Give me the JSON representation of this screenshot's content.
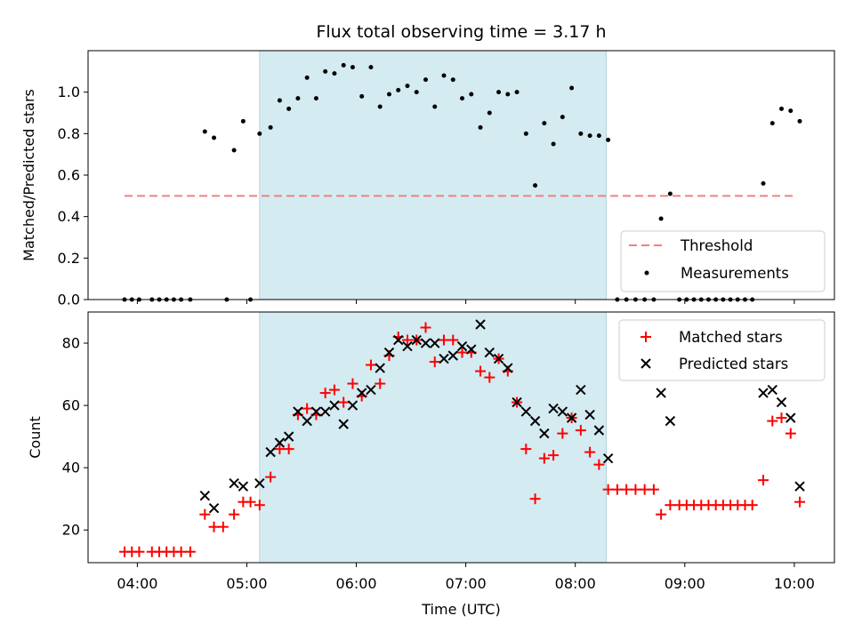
{
  "chart_data": [
    {
      "type": "scatter",
      "title": "Flux total observing time = 3.17 h",
      "xlabel": "",
      "ylabel": "Matched/Predicted stars",
      "xlim": [
        "03:33",
        "10:22"
      ],
      "ylim": [
        0,
        1.2
      ],
      "yticks": [
        0.0,
        0.2,
        0.4,
        0.6,
        0.8,
        1.0
      ],
      "ytick_labels": [
        "0.0",
        "0.2",
        "0.4",
        "0.6",
        "0.8",
        "1.0"
      ],
      "xticks": [
        "04:00",
        "05:00",
        "06:00",
        "07:00",
        "08:00",
        "09:00",
        "10:00"
      ],
      "observing_window": [
        "05:07",
        "08:17"
      ],
      "observing_window_color": "#d4ebf1",
      "legend": {
        "placement": "lower right",
        "entries": [
          "Threshold",
          "Measurements"
        ]
      },
      "threshold": {
        "name": "Threshold",
        "value": 0.5,
        "x_range": [
          "03:53",
          "10:00"
        ],
        "color": "#f08080"
      },
      "series": [
        {
          "name": "Measurements",
          "color": "#000000",
          "points": [
            [
              "03:53",
              0
            ],
            [
              "03:57",
              0
            ],
            [
              "04:01",
              0
            ],
            [
              "04:08",
              0
            ],
            [
              "04:12",
              0
            ],
            [
              "04:16",
              0
            ],
            [
              "04:20",
              0
            ],
            [
              "04:24",
              0
            ],
            [
              "04:29",
              0
            ],
            [
              "04:37",
              0.81
            ],
            [
              "04:42",
              0.78
            ],
            [
              "04:49",
              0
            ],
            [
              "04:53",
              0.72
            ],
            [
              "04:58",
              0.86
            ],
            [
              "05:02",
              0
            ],
            [
              "05:07",
              0.8
            ],
            [
              "05:13",
              0.83
            ],
            [
              "05:18",
              0.96
            ],
            [
              "05:23",
              0.92
            ],
            [
              "05:28",
              0.97
            ],
            [
              "05:33",
              1.07
            ],
            [
              "05:38",
              0.97
            ],
            [
              "05:43",
              1.1
            ],
            [
              "05:48",
              1.09
            ],
            [
              "05:53",
              1.13
            ],
            [
              "05:58",
              1.12
            ],
            [
              "06:03",
              0.98
            ],
            [
              "06:08",
              1.12
            ],
            [
              "06:13",
              0.93
            ],
            [
              "06:18",
              0.99
            ],
            [
              "06:23",
              1.01
            ],
            [
              "06:28",
              1.03
            ],
            [
              "06:33",
              1.0
            ],
            [
              "06:38",
              1.06
            ],
            [
              "06:43",
              0.93
            ],
            [
              "06:48",
              1.08
            ],
            [
              "06:53",
              1.06
            ],
            [
              "06:58",
              0.97
            ],
            [
              "07:03",
              0.99
            ],
            [
              "07:08",
              0.83
            ],
            [
              "07:13",
              0.9
            ],
            [
              "07:18",
              1.0
            ],
            [
              "07:23",
              0.99
            ],
            [
              "07:28",
              1.0
            ],
            [
              "07:33",
              0.8
            ],
            [
              "07:38",
              0.55
            ],
            [
              "07:43",
              0.85
            ],
            [
              "07:48",
              0.75
            ],
            [
              "07:53",
              0.88
            ],
            [
              "07:58",
              1.02
            ],
            [
              "08:03",
              0.8
            ],
            [
              "08:08",
              0.79
            ],
            [
              "08:13",
              0.79
            ],
            [
              "08:18",
              0.77
            ],
            [
              "08:23",
              0
            ],
            [
              "08:28",
              0
            ],
            [
              "08:33",
              0
            ],
            [
              "08:38",
              0
            ],
            [
              "08:43",
              0
            ],
            [
              "08:47",
              0.39
            ],
            [
              "08:52",
              0.51
            ],
            [
              "08:57",
              0
            ],
            [
              "09:01",
              0
            ],
            [
              "09:05",
              0
            ],
            [
              "09:09",
              0
            ],
            [
              "09:13",
              0
            ],
            [
              "09:17",
              0
            ],
            [
              "09:21",
              0
            ],
            [
              "09:25",
              0
            ],
            [
              "09:29",
              0
            ],
            [
              "09:33",
              0
            ],
            [
              "09:37",
              0
            ],
            [
              "09:43",
              0.56
            ],
            [
              "09:48",
              0.85
            ],
            [
              "09:53",
              0.92
            ],
            [
              "09:58",
              0.91
            ],
            [
              "10:03",
              0.86
            ]
          ]
        }
      ]
    },
    {
      "type": "scatter",
      "title": "",
      "xlabel": "Time (UTC)",
      "ylabel": "Count",
      "xlim": [
        "03:33",
        "10:22"
      ],
      "ylim": [
        9.5,
        90
      ],
      "yticks": [
        20,
        40,
        60,
        80
      ],
      "ytick_labels": [
        "20",
        "40",
        "60",
        "80"
      ],
      "xticks": [
        "04:00",
        "05:00",
        "06:00",
        "07:00",
        "08:00",
        "09:00",
        "10:00"
      ],
      "observing_window": [
        "05:07",
        "08:17"
      ],
      "observing_window_color": "#d4ebf1",
      "legend": {
        "placement": "upper right",
        "entries": [
          "Matched stars",
          "Predicted stars"
        ]
      },
      "series": [
        {
          "name": "Matched stars",
          "marker": "plus",
          "color": "#ff0000",
          "points": [
            [
              "03:53",
              13
            ],
            [
              "03:57",
              13
            ],
            [
              "04:01",
              13
            ],
            [
              "04:08",
              13
            ],
            [
              "04:12",
              13
            ],
            [
              "04:16",
              13
            ],
            [
              "04:20",
              13
            ],
            [
              "04:24",
              13
            ],
            [
              "04:29",
              13
            ],
            [
              "04:37",
              25
            ],
            [
              "04:42",
              21
            ],
            [
              "04:47",
              21
            ],
            [
              "04:53",
              25
            ],
            [
              "04:58",
              29
            ],
            [
              "05:02",
              29
            ],
            [
              "05:07",
              28
            ],
            [
              "05:13",
              37
            ],
            [
              "05:18",
              46
            ],
            [
              "05:23",
              46
            ],
            [
              "05:28",
              57
            ],
            [
              "05:33",
              59
            ],
            [
              "05:38",
              57
            ],
            [
              "05:43",
              64
            ],
            [
              "05:48",
              65
            ],
            [
              "05:53",
              61
            ],
            [
              "05:58",
              67
            ],
            [
              "06:03",
              63
            ],
            [
              "06:08",
              73
            ],
            [
              "06:13",
              67
            ],
            [
              "06:18",
              76
            ],
            [
              "06:23",
              82
            ],
            [
              "06:28",
              81
            ],
            [
              "06:33",
              81
            ],
            [
              "06:38",
              85
            ],
            [
              "06:43",
              74
            ],
            [
              "06:48",
              81
            ],
            [
              "06:53",
              81
            ],
            [
              "06:58",
              77
            ],
            [
              "07:03",
              77
            ],
            [
              "07:08",
              71
            ],
            [
              "07:13",
              69
            ],
            [
              "07:18",
              75
            ],
            [
              "07:23",
              71
            ],
            [
              "07:28",
              61
            ],
            [
              "07:33",
              46
            ],
            [
              "07:38",
              30
            ],
            [
              "07:43",
              43
            ],
            [
              "07:48",
              44
            ],
            [
              "07:53",
              51
            ],
            [
              "07:58",
              56
            ],
            [
              "08:03",
              52
            ],
            [
              "08:08",
              45
            ],
            [
              "08:13",
              41
            ],
            [
              "08:18",
              33
            ],
            [
              "08:23",
              33
            ],
            [
              "08:28",
              33
            ],
            [
              "08:33",
              33
            ],
            [
              "08:38",
              33
            ],
            [
              "08:43",
              33
            ],
            [
              "08:47",
              25
            ],
            [
              "08:52",
              28
            ],
            [
              "08:57",
              28
            ],
            [
              "09:01",
              28
            ],
            [
              "09:05",
              28
            ],
            [
              "09:09",
              28
            ],
            [
              "09:13",
              28
            ],
            [
              "09:17",
              28
            ],
            [
              "09:21",
              28
            ],
            [
              "09:25",
              28
            ],
            [
              "09:29",
              28
            ],
            [
              "09:33",
              28
            ],
            [
              "09:37",
              28
            ],
            [
              "09:43",
              36
            ],
            [
              "09:48",
              55
            ],
            [
              "09:53",
              56
            ],
            [
              "09:58",
              51
            ],
            [
              "10:03",
              29
            ]
          ]
        },
        {
          "name": "Predicted stars",
          "marker": "x",
          "color": "#000000",
          "points": [
            [
              "04:37",
              31
            ],
            [
              "04:42",
              27
            ],
            [
              "04:53",
              35
            ],
            [
              "04:58",
              34
            ],
            [
              "05:07",
              35
            ],
            [
              "05:13",
              45
            ],
            [
              "05:18",
              48
            ],
            [
              "05:23",
              50
            ],
            [
              "05:28",
              58
            ],
            [
              "05:33",
              55
            ],
            [
              "05:38",
              58
            ],
            [
              "05:43",
              58
            ],
            [
              "05:48",
              60
            ],
            [
              "05:53",
              54
            ],
            [
              "05:58",
              60
            ],
            [
              "06:03",
              64
            ],
            [
              "06:08",
              65
            ],
            [
              "06:13",
              72
            ],
            [
              "06:18",
              77
            ],
            [
              "06:23",
              81
            ],
            [
              "06:28",
              79
            ],
            [
              "06:33",
              81
            ],
            [
              "06:38",
              80
            ],
            [
              "06:43",
              80
            ],
            [
              "06:48",
              75
            ],
            [
              "06:53",
              76
            ],
            [
              "06:58",
              79
            ],
            [
              "07:03",
              78
            ],
            [
              "07:08",
              86
            ],
            [
              "07:13",
              77
            ],
            [
              "07:18",
              75
            ],
            [
              "07:23",
              72
            ],
            [
              "07:28",
              61
            ],
            [
              "07:33",
              58
            ],
            [
              "07:38",
              55
            ],
            [
              "07:43",
              51
            ],
            [
              "07:48",
              59
            ],
            [
              "07:53",
              58
            ],
            [
              "07:58",
              56
            ],
            [
              "08:03",
              65
            ],
            [
              "08:08",
              57
            ],
            [
              "08:13",
              52
            ],
            [
              "08:18",
              43
            ],
            [
              "08:47",
              64
            ],
            [
              "08:52",
              55
            ],
            [
              "09:43",
              64
            ],
            [
              "09:48",
              65
            ],
            [
              "09:53",
              61
            ],
            [
              "09:58",
              56
            ],
            [
              "10:03",
              34
            ]
          ]
        }
      ]
    }
  ]
}
